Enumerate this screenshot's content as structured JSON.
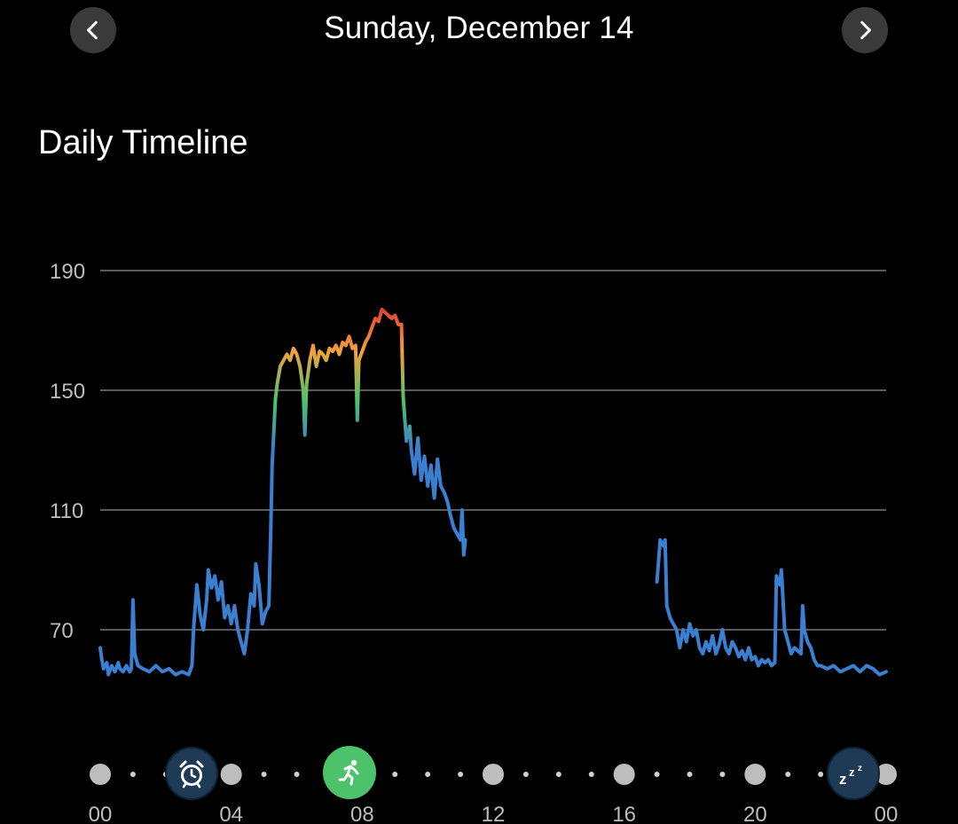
{
  "header": {
    "date": "Sunday, December 14",
    "prev_icon": "chevron-left-icon",
    "next_icon": "chevron-right-icon"
  },
  "section": {
    "title": "Daily Timeline"
  },
  "chart_data": {
    "type": "line",
    "title": "",
    "xlabel": "",
    "ylabel": "",
    "x_ticks": [
      "00",
      "04",
      "08",
      "12",
      "16",
      "20",
      "00"
    ],
    "y_ticks": [
      70,
      110,
      150,
      190
    ],
    "xlim": [
      0,
      24
    ],
    "ylim": [
      50,
      190
    ],
    "grid": true,
    "color_scale": {
      "low": "#3a7fd0",
      "mid": "#4cc36b",
      "high": "#e53935"
    },
    "series": [
      {
        "segments": [
          [
            [
              0.0,
              64
            ],
            [
              0.05,
              60
            ],
            [
              0.1,
              57
            ],
            [
              0.2,
              59
            ],
            [
              0.25,
              55
            ],
            [
              0.35,
              58
            ],
            [
              0.45,
              56
            ],
            [
              0.55,
              59
            ],
            [
              0.6,
              57
            ],
            [
              0.7,
              56
            ],
            [
              0.8,
              58
            ],
            [
              0.9,
              56
            ],
            [
              0.95,
              57
            ],
            [
              1.0,
              80
            ],
            [
              1.05,
              62
            ],
            [
              1.15,
              58
            ],
            [
              1.3,
              57
            ],
            [
              1.5,
              56
            ],
            [
              1.7,
              58
            ],
            [
              1.9,
              56
            ],
            [
              2.1,
              57
            ],
            [
              2.3,
              55
            ],
            [
              2.5,
              56
            ],
            [
              2.7,
              55
            ],
            [
              2.8,
              58
            ],
            [
              2.85,
              70
            ],
            [
              2.95,
              85
            ],
            [
              3.05,
              75
            ],
            [
              3.15,
              70
            ],
            [
              3.25,
              80
            ],
            [
              3.3,
              90
            ],
            [
              3.4,
              84
            ],
            [
              3.5,
              88
            ],
            [
              3.6,
              80
            ],
            [
              3.7,
              86
            ],
            [
              3.8,
              74
            ],
            [
              3.9,
              78
            ],
            [
              4.0,
              72
            ],
            [
              4.1,
              78
            ],
            [
              4.2,
              70
            ],
            [
              4.3,
              66
            ],
            [
              4.4,
              62
            ],
            [
              4.5,
              70
            ],
            [
              4.6,
              82
            ],
            [
              4.7,
              78
            ],
            [
              4.75,
              92
            ],
            [
              4.85,
              85
            ],
            [
              4.95,
              72
            ],
            [
              5.05,
              76
            ],
            [
              5.15,
              78
            ],
            [
              5.2,
              100
            ],
            [
              5.25,
              125
            ],
            [
              5.35,
              147
            ],
            [
              5.4,
              152
            ],
            [
              5.5,
              158
            ],
            [
              5.6,
              160
            ],
            [
              5.7,
              162
            ],
            [
              5.8,
              160
            ],
            [
              5.9,
              164
            ],
            [
              6.0,
              162
            ],
            [
              6.1,
              158
            ],
            [
              6.2,
              150
            ],
            [
              6.25,
              135
            ],
            [
              6.3,
              152
            ],
            [
              6.4,
              160
            ],
            [
              6.5,
              165
            ],
            [
              6.6,
              158
            ],
            [
              6.7,
              163
            ],
            [
              6.8,
              162
            ],
            [
              6.9,
              160
            ],
            [
              7.0,
              164
            ],
            [
              7.1,
              163
            ],
            [
              7.2,
              165
            ],
            [
              7.3,
              162
            ],
            [
              7.4,
              166
            ],
            [
              7.5,
              165
            ],
            [
              7.6,
              168
            ],
            [
              7.7,
              164
            ],
            [
              7.8,
              165
            ],
            [
              7.85,
              140
            ],
            [
              7.9,
              160
            ],
            [
              8.0,
              163
            ],
            [
              8.1,
              166
            ],
            [
              8.2,
              168
            ],
            [
              8.3,
              171
            ],
            [
              8.4,
              174
            ],
            [
              8.5,
              173
            ],
            [
              8.6,
              177
            ],
            [
              8.7,
              176
            ],
            [
              8.8,
              175
            ],
            [
              8.9,
              174
            ],
            [
              9.0,
              175
            ],
            [
              9.1,
              172
            ],
            [
              9.2,
              172
            ],
            [
              9.25,
              148
            ],
            [
              9.35,
              133
            ],
            [
              9.45,
              138
            ],
            [
              9.5,
              130
            ],
            [
              9.6,
              122
            ],
            [
              9.7,
              134
            ],
            [
              9.8,
              120
            ],
            [
              9.9,
              128
            ],
            [
              10.0,
              118
            ],
            [
              10.1,
              125
            ],
            [
              10.2,
              114
            ],
            [
              10.3,
              127
            ],
            [
              10.4,
              118
            ],
            [
              10.5,
              116
            ],
            [
              10.6,
              113
            ],
            [
              10.7,
              108
            ],
            [
              10.8,
              104
            ],
            [
              10.9,
              102
            ],
            [
              11.0,
              100
            ],
            [
              11.05,
              110
            ],
            [
              11.1,
              95
            ],
            [
              11.15,
              100
            ]
          ],
          [
            [
              17.0,
              86
            ],
            [
              17.1,
              100
            ],
            [
              17.2,
              98
            ],
            [
              17.25,
              100
            ],
            [
              17.3,
              78
            ],
            [
              17.4,
              74
            ],
            [
              17.5,
              72
            ],
            [
              17.6,
              70
            ],
            [
              17.7,
              64
            ],
            [
              17.8,
              70
            ],
            [
              17.9,
              66
            ],
            [
              18.0,
              72
            ],
            [
              18.1,
              68
            ],
            [
              18.2,
              70
            ],
            [
              18.3,
              64
            ],
            [
              18.4,
              62
            ],
            [
              18.5,
              66
            ],
            [
              18.6,
              63
            ],
            [
              18.7,
              68
            ],
            [
              18.8,
              62
            ],
            [
              18.9,
              65
            ],
            [
              19.0,
              70
            ],
            [
              19.1,
              64
            ],
            [
              19.2,
              62
            ],
            [
              19.3,
              66
            ],
            [
              19.4,
              64
            ],
            [
              19.5,
              61
            ],
            [
              19.6,
              63
            ],
            [
              19.7,
              60
            ],
            [
              19.8,
              64
            ],
            [
              19.9,
              60
            ],
            [
              20.0,
              61
            ],
            [
              20.1,
              58
            ],
            [
              20.2,
              60
            ],
            [
              20.3,
              59
            ],
            [
              20.4,
              60
            ],
            [
              20.5,
              58
            ],
            [
              20.6,
              59
            ],
            [
              20.65,
              88
            ],
            [
              20.75,
              85
            ],
            [
              20.8,
              90
            ],
            [
              20.9,
              70
            ],
            [
              21.0,
              66
            ],
            [
              21.1,
              62
            ],
            [
              21.2,
              64
            ],
            [
              21.3,
              63
            ],
            [
              21.4,
              62
            ],
            [
              21.45,
              78
            ],
            [
              21.5,
              70
            ],
            [
              21.6,
              66
            ],
            [
              21.7,
              64
            ],
            [
              21.8,
              60
            ],
            [
              21.9,
              58
            ],
            [
              22.0,
              58
            ],
            [
              22.2,
              57
            ],
            [
              22.4,
              58
            ],
            [
              22.6,
              56
            ],
            [
              22.8,
              57
            ],
            [
              23.0,
              58
            ],
            [
              23.2,
              56
            ],
            [
              23.4,
              58
            ],
            [
              23.6,
              57
            ],
            [
              23.8,
              55
            ],
            [
              24.0,
              56
            ]
          ]
        ]
      }
    ]
  },
  "timeline_events": [
    {
      "name": "alarm",
      "icon": "alarm-clock-icon",
      "time": 2.8
    },
    {
      "name": "run",
      "icon": "running-icon",
      "time": 7.6
    },
    {
      "name": "sleep",
      "icon": "sleep-zzz-icon",
      "time": 23.4
    }
  ]
}
